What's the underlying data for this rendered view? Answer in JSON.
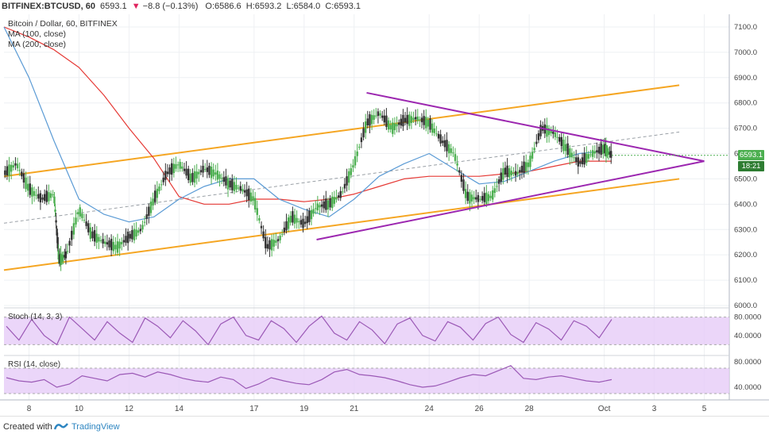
{
  "header": {
    "symbol": "BITFINEX:BTCUSD, 60",
    "last": "6593.1",
    "change_arrow": "▼",
    "change": "−8.8 (−0.13%)",
    "open": "O:6586.6",
    "high": "H:6593.2",
    "low": "L:6584.0",
    "close": "C:6593.1"
  },
  "legend": {
    "title": "Bitcoin / Dollar, 60, BITFINEX",
    "ma100": "MA (100, close)",
    "ma200": "MA (200, close)"
  },
  "price_boxes": {
    "last": "6593.1",
    "countdown": "18:21"
  },
  "indicators": {
    "stoch_label": "Stoch (14, 3, 3)",
    "rsi_label": "RSI (14, close)"
  },
  "footer": {
    "created": "Created with",
    "brand": "TradingView"
  },
  "colors": {
    "up": "#26a69a",
    "down": "#333333",
    "green_candle": "#4caf50",
    "channel": "#f5a623",
    "triangle": "#9c27b0",
    "ma100": "#5b9bd5",
    "ma200": "#e53935",
    "osc_fill": "#e6ccf7",
    "osc_line": "#9b59b6",
    "last_box": "#4caf50",
    "count_box": "#2e7d32"
  },
  "chart_data": {
    "type": "line",
    "y_axis": {
      "min": 6000,
      "max": 7150,
      "ticks": [
        6000,
        6100,
        6200,
        6300,
        6400,
        6500,
        6600,
        6700,
        6800,
        6900,
        7000,
        7100
      ],
      "tick_labels": [
        "6000.0",
        "6100.0",
        "6200.0",
        "6300.0",
        "6400.0",
        "6500.0",
        "6600.0",
        "6700.0",
        "6800.0",
        "6900.0",
        "7000.0",
        "7100.0"
      ]
    },
    "x_axis": {
      "min": 0,
      "max": 29,
      "ticks": [
        1,
        3,
        5,
        7,
        9,
        11,
        13,
        16,
        18,
        20,
        22,
        24,
        26,
        27
      ],
      "tick_labels": [
        "8",
        "10",
        "12",
        "14",
        "17",
        "19",
        "21",
        "24",
        "26",
        "28",
        "Oct",
        "3",
        "5",
        ""
      ]
    },
    "x_ticks": [
      {
        "x": 1.0,
        "label": "8"
      },
      {
        "x": 3.0,
        "label": "10"
      },
      {
        "x": 5.0,
        "label": "12"
      },
      {
        "x": 7.0,
        "label": "14"
      },
      {
        "x": 10.0,
        "label": "17"
      },
      {
        "x": 12.0,
        "label": "19"
      },
      {
        "x": 14.0,
        "label": "21"
      },
      {
        "x": 17.0,
        "label": "24"
      },
      {
        "x": 19.0,
        "label": "26"
      },
      {
        "x": 21.0,
        "label": "28"
      },
      {
        "x": 24.0,
        "label": "Oct"
      },
      {
        "x": 26.0,
        "label": "3"
      },
      {
        "x": 28.0,
        "label": "5"
      }
    ],
    "price": {
      "x": [
        0,
        0.5,
        1,
        1.5,
        2,
        2.2,
        2.5,
        3,
        3.5,
        4,
        4.5,
        5,
        5.5,
        6,
        6.5,
        7,
        7.5,
        8,
        8.5,
        9,
        9.5,
        10,
        10.5,
        11,
        11.5,
        12,
        12.5,
        13,
        13.5,
        14,
        14.5,
        15,
        15.5,
        16,
        16.5,
        17,
        17.5,
        18,
        18.5,
        19,
        19.5,
        20,
        20.5,
        21,
        21.5,
        22,
        22.5,
        23,
        23.5,
        24,
        24.3
      ],
      "y": [
        6520,
        6560,
        6460,
        6420,
        6440,
        6180,
        6200,
        6380,
        6280,
        6250,
        6230,
        6270,
        6300,
        6420,
        6520,
        6560,
        6500,
        6540,
        6520,
        6480,
        6460,
        6420,
        6230,
        6260,
        6350,
        6320,
        6390,
        6400,
        6440,
        6560,
        6720,
        6760,
        6700,
        6730,
        6740,
        6720,
        6650,
        6600,
        6430,
        6420,
        6430,
        6530,
        6520,
        6560,
        6700,
        6680,
        6620,
        6560,
        6600,
        6620,
        6593
      ]
    },
    "ma100": {
      "x": [
        0,
        1,
        2,
        3,
        4,
        5,
        6,
        7,
        8,
        9,
        10,
        11,
        12,
        13,
        14,
        15,
        16,
        17,
        18,
        19,
        20,
        21,
        22,
        23,
        24,
        24.3
      ],
      "y": [
        7100,
        6900,
        6650,
        6420,
        6360,
        6330,
        6350,
        6420,
        6470,
        6500,
        6500,
        6420,
        6380,
        6350,
        6420,
        6510,
        6560,
        6600,
        6540,
        6480,
        6490,
        6530,
        6570,
        6600,
        6610,
        6605
      ]
    },
    "ma200": {
      "x": [
        0,
        1,
        2,
        3,
        4,
        5,
        6,
        7,
        8,
        9,
        10,
        11,
        12,
        13,
        14,
        15,
        16,
        17,
        18,
        19,
        20,
        21,
        22,
        23,
        24,
        24.3
      ],
      "y": [
        7100,
        7060,
        7010,
        6940,
        6830,
        6700,
        6580,
        6430,
        6400,
        6400,
        6420,
        6420,
        6410,
        6420,
        6440,
        6470,
        6500,
        6510,
        6510,
        6510,
        6520,
        6530,
        6550,
        6570,
        6570,
        6570
      ]
    },
    "channel_upper": {
      "x": [
        0,
        27
      ],
      "y": [
        6510,
        6870
      ]
    },
    "channel_lower": {
      "x": [
        0,
        27
      ],
      "y": [
        6140,
        6500
      ]
    },
    "channel_mid": {
      "x": [
        0,
        27
      ],
      "y": [
        6325,
        6685
      ]
    },
    "triangle_upper": {
      "x": [
        14.5,
        28
      ],
      "y": [
        6840,
        6570
      ]
    },
    "triangle_lower": {
      "x": [
        12.5,
        28
      ],
      "y": [
        6260,
        6570
      ]
    },
    "stoch": {
      "range": [
        0,
        100
      ],
      "ticks": [
        40,
        80
      ],
      "tick_labels": [
        "40.0000",
        "80.0000"
      ],
      "band": [
        20,
        80
      ],
      "values": [
        60,
        30,
        75,
        40,
        20,
        80,
        55,
        30,
        70,
        45,
        25,
        78,
        60,
        35,
        72,
        50,
        20,
        65,
        80,
        40,
        30,
        72,
        55,
        25,
        60,
        82,
        45,
        30,
        70,
        52,
        22,
        65,
        78,
        40,
        28,
        70,
        58,
        30,
        66,
        80,
        42,
        25,
        68,
        54,
        30,
        72,
        60,
        35,
        75
      ]
    },
    "rsi": {
      "range": [
        20,
        90
      ],
      "ticks": [
        40,
        80
      ],
      "tick_labels": [
        "40.0000",
        "80.0000"
      ],
      "band": [
        30,
        70
      ],
      "values": [
        55,
        50,
        48,
        52,
        40,
        45,
        58,
        54,
        50,
        60,
        62,
        56,
        64,
        60,
        54,
        50,
        48,
        56,
        52,
        38,
        45,
        55,
        50,
        46,
        44,
        52,
        64,
        68,
        60,
        58,
        55,
        50,
        44,
        40,
        42,
        48,
        55,
        60,
        58,
        66,
        74,
        54,
        52,
        56,
        58,
        54,
        50,
        48,
        52
      ]
    }
  }
}
